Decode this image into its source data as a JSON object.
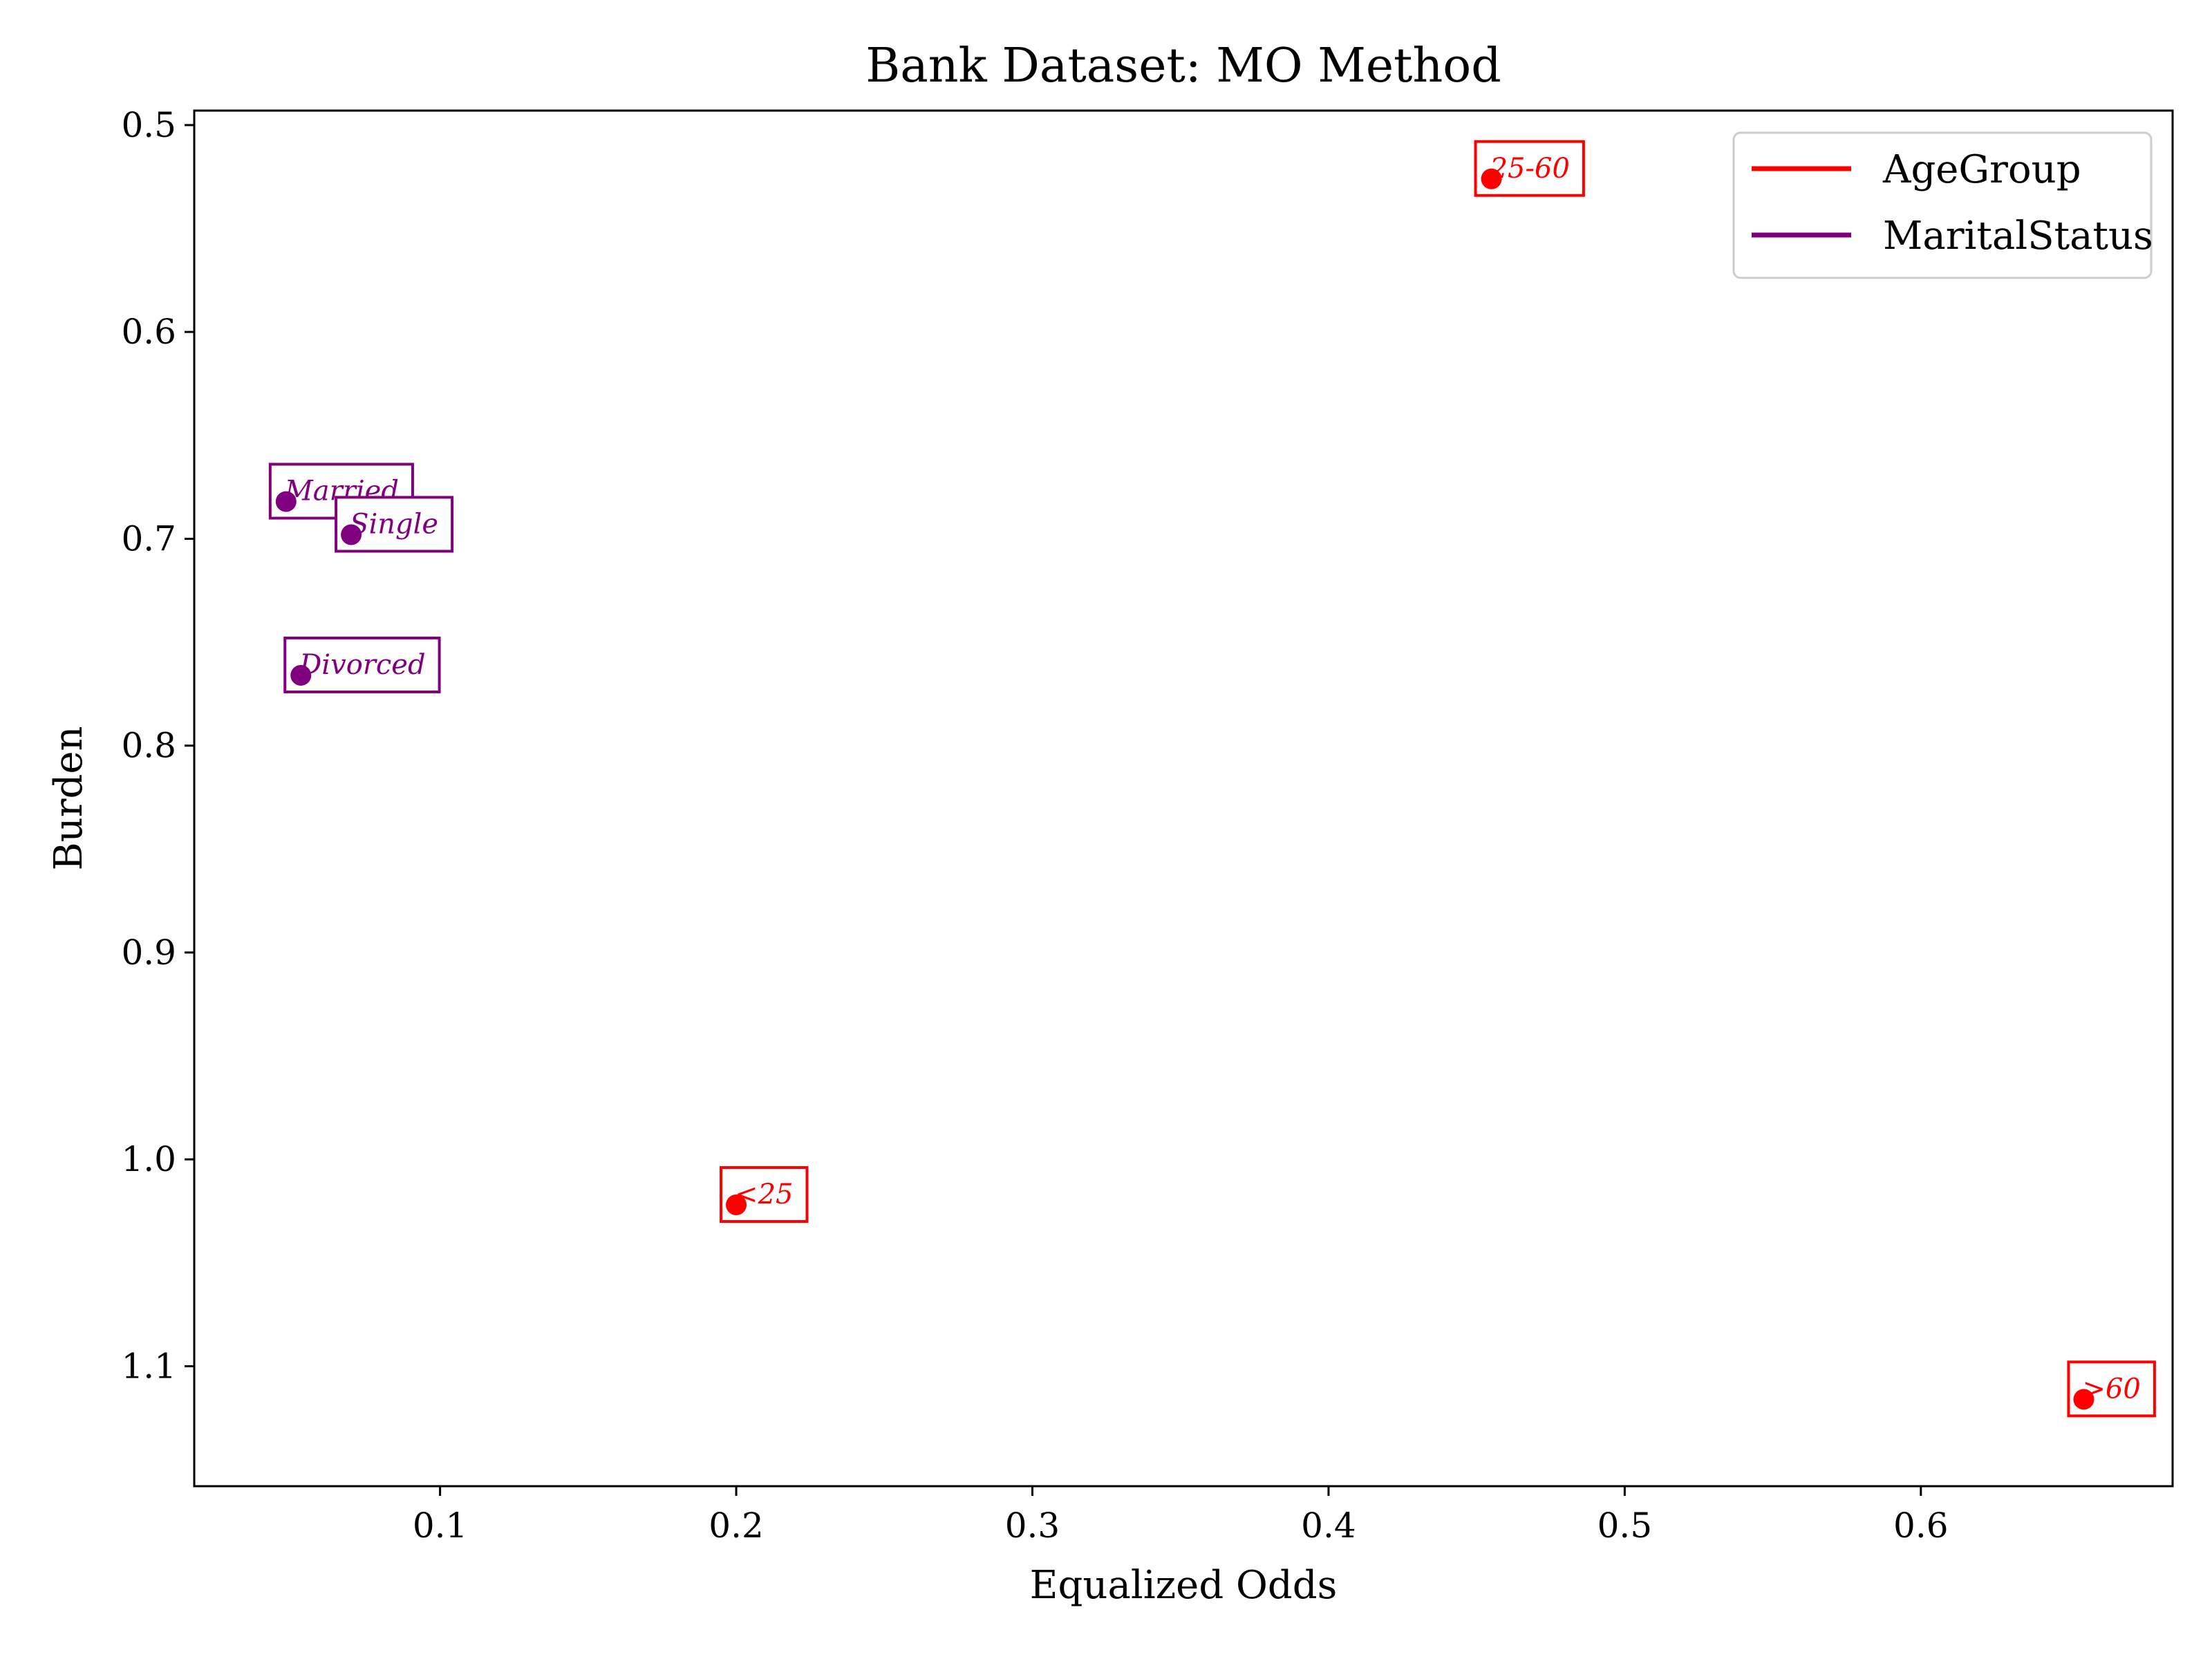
{
  "chart_data": {
    "type": "scatter",
    "title": "Bank Dataset: MO Method",
    "xlabel": "Equalized Odds",
    "ylabel": "Burden",
    "xlim": [
      0.017,
      0.685
    ],
    "ylim": [
      0.493,
      1.158
    ],
    "y_inverted": true,
    "x_ticks": [
      0.1,
      0.2,
      0.3,
      0.4,
      0.5,
      0.6
    ],
    "x_tick_labels": [
      "0.1",
      "0.2",
      "0.3",
      "0.4",
      "0.5",
      "0.6"
    ],
    "y_ticks": [
      0.5,
      0.6,
      0.7,
      0.8,
      0.9,
      1.0,
      1.1
    ],
    "y_tick_labels": [
      "0.5",
      "0.6",
      "0.7",
      "0.8",
      "0.9",
      "1.0",
      "1.1"
    ],
    "grid": false,
    "legend_position": "top-right",
    "series": [
      {
        "name": "AgeGroup",
        "color": "#ff0000",
        "points": [
          {
            "label": "25-60",
            "x": 0.455,
            "y": 0.526
          },
          {
            "label": "<25",
            "x": 0.2,
            "y": 1.022
          },
          {
            "label": ">60",
            "x": 0.655,
            "y": 1.116
          }
        ]
      },
      {
        "name": "MaritalStatus",
        "color": "#800080",
        "points": [
          {
            "label": "Married",
            "x": 0.048,
            "y": 0.682
          },
          {
            "label": "Single",
            "x": 0.07,
            "y": 0.698
          },
          {
            "label": "Divorced",
            "x": 0.053,
            "y": 0.766
          }
        ]
      }
    ]
  }
}
